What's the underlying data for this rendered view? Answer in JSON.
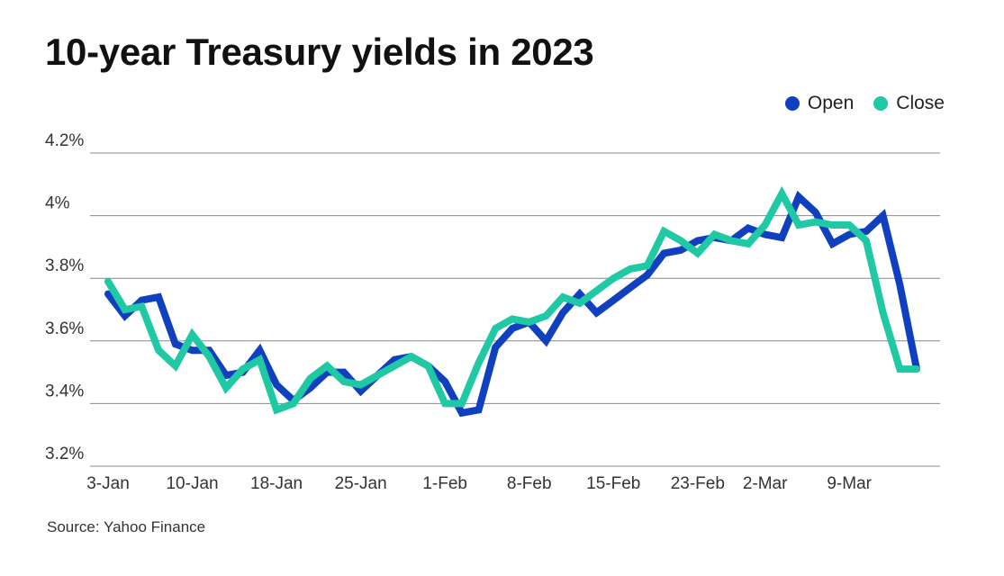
{
  "title": "10-year Treasury yields in 2023",
  "source": "Source: Yahoo Finance",
  "colors": {
    "open": "#1040c0",
    "close": "#1fc9a4",
    "grid": "#888888",
    "text": "#333333"
  },
  "chart_data": {
    "type": "line",
    "title": "10-year Treasury yields in 2023",
    "xlabel": "",
    "ylabel": "",
    "ylim": [
      3.2,
      4.2
    ],
    "yticks": [
      4.2,
      4.0,
      3.8,
      3.6,
      3.4,
      3.2
    ],
    "ytick_labels": [
      "4.2%",
      "4%",
      "3.8%",
      "3.6%",
      "3.4%",
      "3.2%"
    ],
    "xlim": [
      0,
      48
    ],
    "xticks": [
      0,
      5,
      10,
      15,
      20,
      25,
      30,
      35,
      39,
      44
    ],
    "xtick_labels": [
      "3-Jan",
      "10-Jan",
      "18-Jan",
      "25-Jan",
      "1-Feb",
      "8-Feb",
      "15-Feb",
      "23-Feb",
      "2-Mar",
      "9-Mar"
    ],
    "grid": true,
    "legend_position": "top-right",
    "series": [
      {
        "name": "Open",
        "color": "#1040c0",
        "values": [
          3.75,
          3.68,
          3.73,
          3.74,
          3.59,
          3.57,
          3.57,
          3.49,
          3.5,
          3.57,
          3.46,
          3.41,
          3.45,
          3.5,
          3.5,
          3.44,
          3.49,
          3.54,
          3.55,
          3.52,
          3.47,
          3.37,
          3.38,
          3.58,
          3.64,
          3.66,
          3.6,
          3.69,
          3.75,
          3.69,
          3.73,
          3.77,
          3.81,
          3.88,
          3.89,
          3.92,
          3.93,
          3.92,
          3.96,
          3.94,
          3.93,
          4.06,
          4.01,
          3.91,
          3.94,
          3.95,
          4.0,
          3.78,
          3.51
        ]
      },
      {
        "name": "Close",
        "color": "#1fc9a4",
        "values": [
          3.79,
          3.7,
          3.71,
          3.57,
          3.52,
          3.62,
          3.55,
          3.45,
          3.51,
          3.54,
          3.38,
          3.4,
          3.48,
          3.52,
          3.47,
          3.46,
          3.49,
          3.52,
          3.55,
          3.52,
          3.4,
          3.4,
          3.53,
          3.64,
          3.67,
          3.66,
          3.68,
          3.74,
          3.72,
          3.76,
          3.8,
          3.83,
          3.84,
          3.95,
          3.92,
          3.88,
          3.94,
          3.92,
          3.91,
          3.97,
          4.07,
          3.97,
          3.98,
          3.97,
          3.97,
          3.92,
          3.69,
          3.51,
          3.51
        ]
      }
    ]
  }
}
